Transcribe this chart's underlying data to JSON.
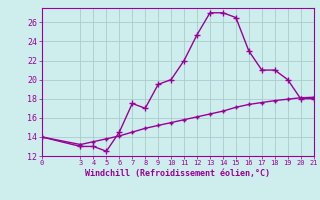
{
  "xlabel": "Windchill (Refroidissement éolien,°C)",
  "background_color": "#ceeeed",
  "line_color": "#990099",
  "grid_color": "#aacccc",
  "x_main": [
    0,
    3,
    4,
    5,
    6,
    7,
    8,
    9,
    10,
    11,
    12,
    13,
    14,
    15,
    16,
    17,
    18,
    19,
    20,
    21
  ],
  "y_main": [
    14,
    13,
    13,
    12.5,
    14.5,
    17.5,
    17,
    19.5,
    20,
    22,
    24.7,
    27,
    27,
    26.5,
    23,
    21,
    21,
    20,
    18,
    18
  ],
  "x_ref": [
    0,
    3,
    4,
    5,
    6,
    7,
    8,
    9,
    10,
    11,
    12,
    13,
    14,
    15,
    16,
    17,
    18,
    19,
    20,
    21
  ],
  "y_ref": [
    14,
    13.2,
    13.5,
    13.8,
    14.1,
    14.5,
    14.9,
    15.2,
    15.5,
    15.8,
    16.1,
    16.4,
    16.7,
    17.1,
    17.4,
    17.6,
    17.8,
    17.95,
    18.1,
    18.15
  ],
  "xlim": [
    0,
    21
  ],
  "ylim": [
    12,
    27.5
  ],
  "yticks": [
    12,
    14,
    16,
    18,
    20,
    22,
    24,
    26
  ],
  "xticks": [
    0,
    3,
    4,
    5,
    6,
    7,
    8,
    9,
    10,
    11,
    12,
    13,
    14,
    15,
    16,
    17,
    18,
    19,
    20,
    21
  ]
}
